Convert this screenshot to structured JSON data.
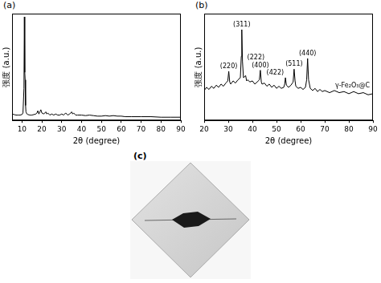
{
  "chart_data": [
    {
      "panel": "(a)",
      "type": "line",
      "x_label": "2θ (degree)",
      "y_label": "强度 (a.u.)",
      "x": [
        5,
        6,
        7,
        8,
        9,
        10,
        10.5,
        11,
        11.2,
        11.4,
        11.6,
        11.8,
        12,
        12.5,
        13,
        14,
        15,
        16,
        17,
        17.5,
        18,
        18.5,
        19,
        19.5,
        20,
        21,
        22,
        22.5,
        23,
        24,
        25,
        26,
        27,
        28,
        29,
        30,
        31,
        32,
        33,
        34,
        35,
        35.5,
        36,
        37,
        38,
        40,
        42,
        44,
        46,
        48,
        50,
        52,
        54,
        56,
        58,
        60,
        62,
        65,
        70,
        75,
        80,
        85,
        90
      ],
      "series": [
        {
          "color": "#000000",
          "values": [
            6,
            5.5,
            5,
            5,
            5,
            5.5,
            7,
            30,
            97,
            45,
            38,
            14,
            8,
            6,
            5.5,
            5,
            5,
            5.5,
            6,
            7,
            9,
            6,
            8,
            10,
            7,
            6,
            8,
            6,
            7,
            5,
            6,
            5,
            6,
            5,
            5,
            6,
            5,
            7,
            5,
            6,
            8,
            6,
            7,
            5,
            5,
            5,
            4.5,
            5,
            4.5,
            4,
            4,
            4.5,
            4,
            4.5,
            4,
            4,
            3.5,
            3.5,
            3.5,
            3.5,
            3,
            3,
            3
          ]
        }
      ],
      "xlim": [
        5,
        90
      ],
      "xticks": [
        10,
        20,
        30,
        40,
        50,
        60,
        70,
        80,
        90
      ],
      "ylim": [
        0,
        100
      ],
      "grid": false,
      "legend": false,
      "tick_labels": "x"
    },
    {
      "panel": "(b)",
      "type": "line",
      "x_label": "2θ (degree)",
      "y_label": "强度 (a.u.)",
      "x": [
        20,
        21,
        22,
        23,
        24,
        25,
        26,
        27,
        28,
        29,
        29.8,
        30.2,
        30.6,
        31,
        32,
        33,
        34,
        35,
        35.4,
        35.6,
        35.9,
        36.3,
        37.2,
        37.6,
        38,
        39,
        40,
        41,
        42,
        42.9,
        43.3,
        43.7,
        44,
        45,
        46,
        47,
        48,
        49,
        50,
        51,
        52,
        53,
        53.4,
        53.7,
        54.1,
        55,
        56,
        56.9,
        57.3,
        57.7,
        58,
        59,
        60,
        61,
        62,
        62.5,
        62.9,
        63.3,
        64,
        65,
        66,
        67,
        68,
        69,
        70,
        72,
        74,
        76,
        78,
        80,
        82,
        84,
        86,
        88,
        90
      ],
      "series": [
        {
          "name": "γ-Fe₂O₃@C",
          "color": "#000000",
          "values": [
            28,
            31,
            29,
            32,
            30,
            33,
            31,
            34,
            32,
            35,
            37,
            46,
            36,
            34,
            37,
            35,
            38,
            40,
            60,
            85,
            55,
            40,
            42,
            37,
            38,
            36,
            37,
            34,
            36,
            38,
            47,
            36,
            34,
            35,
            32,
            34,
            31,
            33,
            30,
            32,
            30,
            31,
            34,
            40,
            33,
            31,
            33,
            36,
            48,
            37,
            32,
            30,
            31,
            29,
            31,
            38,
            58,
            38,
            30,
            28,
            30,
            27,
            29,
            27,
            28,
            26,
            28,
            26,
            27,
            25,
            27,
            25,
            26,
            24,
            25
          ]
        }
      ],
      "annotations": [
        {
          "text": "(220)",
          "x": 30.2,
          "y": 46
        },
        {
          "text": "(311)",
          "x": 35.6,
          "y": 85
        },
        {
          "text": "(222)",
          "x": 37.2,
          "y": 42
        },
        {
          "text": "(400)",
          "x": 43.3,
          "y": 47
        },
        {
          "text": "(422)",
          "x": 53.7,
          "y": 40
        },
        {
          "text": "(511)",
          "x": 57.3,
          "y": 48
        },
        {
          "text": "(440)",
          "x": 62.9,
          "y": 58
        }
      ],
      "xlim": [
        20,
        90
      ],
      "xticks": [
        20,
        30,
        40,
        50,
        60,
        70,
        80,
        90
      ],
      "ylim": [
        0,
        100
      ],
      "grid": false,
      "legend": false,
      "tick_labels": "x"
    }
  ],
  "image_panel": {
    "panel": "(c)"
  }
}
